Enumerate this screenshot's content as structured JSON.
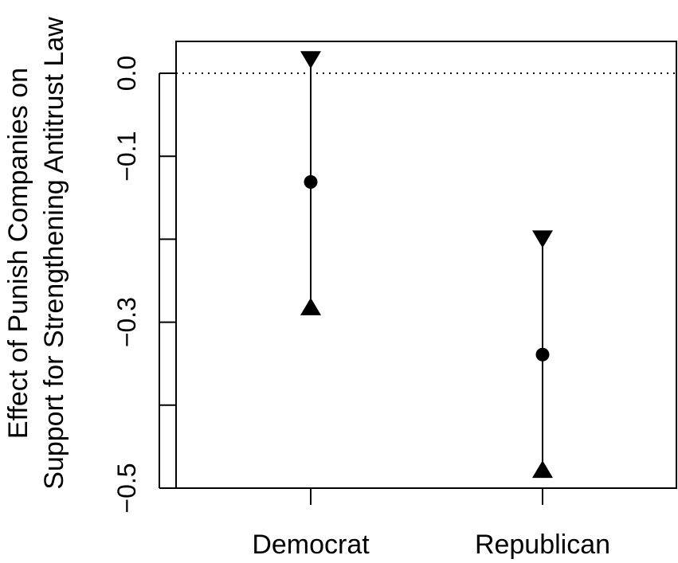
{
  "chart_data": {
    "type": "scatter",
    "xlabel": "",
    "ylabel_lines": [
      "Effect of Punish Companies on",
      "Support for Strengthening Antitrust Law"
    ],
    "categories": [
      "Democrat",
      "Republican"
    ],
    "estimates": [
      -0.131,
      -0.339
    ],
    "ci_lower": [
      -0.282,
      -0.478
    ],
    "ci_upper": [
      0.017,
      -0.199
    ],
    "ylim": [
      -0.5,
      0.05
    ],
    "yticks": [
      0.0,
      -0.1,
      -0.2,
      -0.3,
      -0.4,
      -0.5
    ],
    "ytick_labels": [
      "0.0",
      "−0.1",
      "",
      "−0.3",
      "",
      "−0.5"
    ],
    "reference_line": 0.0,
    "grid": false,
    "legend": "none"
  }
}
